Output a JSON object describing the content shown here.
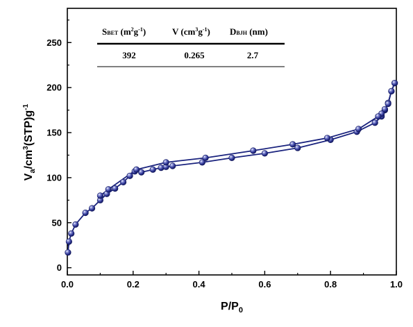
{
  "chart_data": {
    "type": "scatter",
    "xlabel": {
      "main": "P/P",
      "sub": "0"
    },
    "ylabel": {
      "main": "V",
      "sub": "a",
      "rest": "/cm",
      "sup": "3",
      "rest2": "(STP)g",
      "sup2": "-1"
    },
    "xlim": [
      0.0,
      1.0
    ],
    "ylim": [
      -8,
      288
    ],
    "xticks": [
      0.0,
      0.2,
      0.4,
      0.6,
      0.8,
      1.0
    ],
    "xtick_labels": [
      "0.0",
      "0.2",
      "0.4",
      "0.6",
      "0.8",
      "1.0"
    ],
    "yticks": [
      0,
      50,
      100,
      150,
      200,
      250
    ],
    "ytick_labels": [
      "0",
      "50",
      "100",
      "150",
      "200",
      "250"
    ],
    "series_color": "#1a237e",
    "series": [
      {
        "x": [
          0.002,
          0.005,
          0.012,
          0.025,
          0.055,
          0.075,
          0.1,
          0.12,
          0.145,
          0.17,
          0.19,
          0.205,
          0.225,
          0.26,
          0.285,
          0.3,
          0.32,
          0.41,
          0.5,
          0.6,
          0.7,
          0.8,
          0.88,
          0.935,
          0.955,
          0.965,
          0.975,
          0.985,
          0.995
        ],
        "y": [
          17,
          29,
          38,
          48,
          61,
          66,
          75,
          82,
          88,
          95,
          102,
          107,
          106,
          109,
          111,
          112,
          113,
          117,
          122,
          127,
          133,
          142,
          151,
          161,
          168,
          175,
          183,
          196,
          205
        ]
      },
      {
        "x": [
          0.995,
          0.985,
          0.975,
          0.965,
          0.955,
          0.945,
          0.885,
          0.79,
          0.685,
          0.565,
          0.42,
          0.3,
          0.21,
          0.125,
          0.1
        ],
        "y": [
          205,
          196,
          182,
          176,
          171,
          168,
          154,
          144,
          137,
          130,
          122,
          117,
          109,
          87,
          80
        ]
      }
    ]
  },
  "table": {
    "headers": [
      {
        "main": "S",
        "sub": "BET",
        "unit_pre": " (m",
        "sup1": "2",
        "unit_mid": "g",
        "sup2": "-1",
        "unit_post": ")"
      },
      {
        "main": "V",
        "unit_pre": " (cm",
        "sup1": "3",
        "unit_mid": "g",
        "sup2": "-1",
        "unit_post": ")"
      },
      {
        "main": "D",
        "sub": "BJH",
        "unit_pre": " (nm)"
      }
    ],
    "values": [
      "392",
      "0.265",
      "2.7"
    ]
  }
}
